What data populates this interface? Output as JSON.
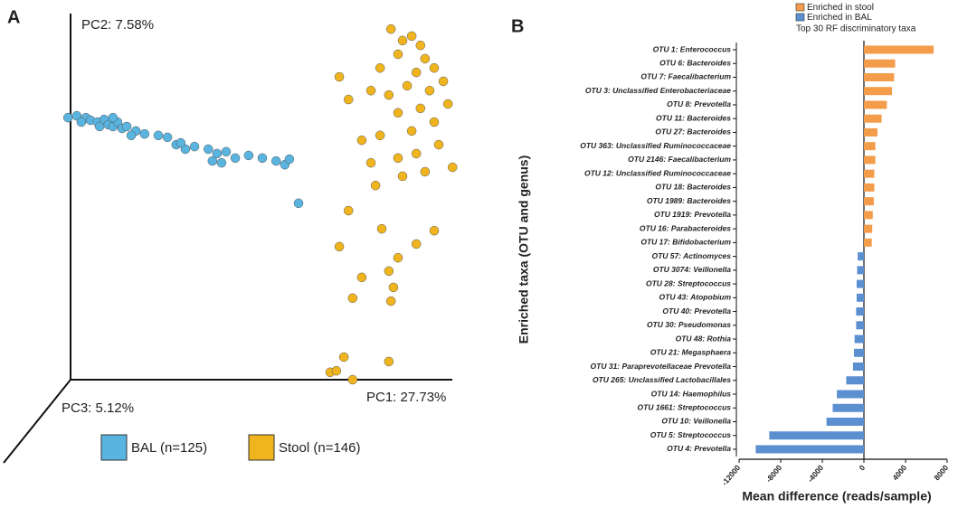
{
  "chart_data": [
    {
      "type": "scatter",
      "panel": "A",
      "axis_labels": {
        "pc1": "PC1: 27.73%",
        "pc2": "PC2: 7.58%",
        "pc3": "PC3: 5.12%"
      },
      "series": [
        {
          "name": "BAL (n=125)",
          "color": "#5ab4e0",
          "x": [
            3.3,
            5.4,
            7.6,
            8.7,
            10.4,
            12.0,
            13.0,
            14.1,
            15.2,
            16.3,
            17.4,
            19.6,
            21.7,
            25.0,
            27.2,
            29.3,
            31.5,
            33.7,
            37.0,
            39.1,
            41.3,
            43.5,
            46.7,
            50.0,
            53.3,
            55.4,
            56.5,
            58.7,
            6.5,
            10.9,
            14.1,
            18.5,
            30.4,
            38.0,
            40.2
          ],
          "y": [
            70.7,
            71.2,
            70.7,
            70.0,
            69.5,
            70.2,
            68.8,
            68.3,
            69.5,
            67.8,
            68.3,
            67.1,
            66.3,
            65.9,
            65.4,
            63.4,
            62.2,
            62.9,
            62.2,
            61.0,
            61.5,
            59.8,
            60.5,
            59.8,
            59.0,
            58.0,
            59.5,
            47.6,
            69.5,
            68.3,
            70.7,
            65.9,
            63.9,
            59.0,
            58.5
          ]
        },
        {
          "name": "Stool (n=146)",
          "color": "#f0b41e",
          "x": [
            80.9,
            83.7,
            85.9,
            88.0,
            82.6,
            89.1,
            91.3,
            78.3,
            87.0,
            93.5,
            84.8,
            90.2,
            80.4,
            76.1,
            94.6,
            88.0,
            82.6,
            91.3,
            85.9,
            78.3,
            73.9,
            92.4,
            87.0,
            82.6,
            95.7,
            76.1,
            89.1,
            83.7,
            68.5,
            70.7,
            77.2,
            91.3,
            87.0,
            82.6,
            80.4,
            70.7,
            78.7,
            68.5,
            73.9,
            81.5,
            71.7,
            80.9,
            69.6,
            66.3,
            71.7,
            80.4,
            67.8
          ],
          "y": [
            94.6,
            91.5,
            92.7,
            90.2,
            87.8,
            86.6,
            84.1,
            84.1,
            82.9,
            80.5,
            79.3,
            78.0,
            76.8,
            78.0,
            74.4,
            73.2,
            72.0,
            69.5,
            67.1,
            65.9,
            64.6,
            63.4,
            61.0,
            59.8,
            57.3,
            58.5,
            56.1,
            54.9,
            81.7,
            75.6,
            52.4,
            40.2,
            36.6,
            32.9,
            29.3,
            45.6,
            40.7,
            35.9,
            27.6,
            24.9,
            22.0,
            21.2,
            6.1,
            2.0,
            0,
            4.9,
            2.4
          ]
        }
      ]
    },
    {
      "type": "hbar",
      "panel": "B",
      "y_label": "Enriched taxa (OTU and genus)",
      "x_label": "Mean difference (reads/sample)",
      "legend": [
        {
          "label": "Enriched in stool",
          "color": "#f39c4a"
        },
        {
          "label": "Enriched in BAL",
          "color": "#5b8fd0"
        }
      ],
      "highlight_note": {
        "text": "Top 30  RF discriminatory taxa",
        "color": "#3aa04a"
      },
      "categories": [
        "OTU 1: Enterococcus",
        "OTU 6: Bacteroides",
        "OTU 7: Faecalibacterium",
        "OTU 3: Unclassified Enterobacteriaceae",
        "OTU 8: Prevotella",
        "OTU 11: Bacteroides",
        "OTU 27: Bacteroides",
        "OTU 363: Unclassified Ruminococcaceae",
        "OTU 2146: Faecalibacterium",
        "OTU 12: Unclassified Ruminococcaceae",
        "OTU 18: Bacteroides",
        "OTU 1989: Bacteroides",
        "OTU 1919: Prevotella",
        "OTU 16: Parabacteroides",
        "OTU 17: Bifidobacterium",
        "OTU 57: Actinomyces",
        "OTU 3074: Veillonella",
        "OTU 28: Streptococcus",
        "OTU 43: Atopobium",
        "OTU 40: Prevotella",
        "OTU 30: Pseudomonas",
        "OTU 48: Rothia",
        "OTU 21: Megasphaera",
        "OTU 31: Paraprevotellaceae Prevotella",
        "OTU 265: Unclassified Lactobacillales",
        "OTU 14: Haemophilus",
        "OTU 1661: Streptococcus",
        "OTU 10: Veillonella",
        "OTU 5: Streptococcus",
        "OTU 4: Prevotella"
      ],
      "highlighted": [
        true,
        false,
        true,
        false,
        false,
        true,
        true,
        true,
        false,
        false,
        false,
        false,
        false,
        false,
        false,
        false,
        false,
        false,
        false,
        true,
        true,
        false,
        false,
        false,
        false,
        false,
        false,
        false,
        true,
        true
      ],
      "values": [
        6700,
        3000,
        2900,
        2700,
        2200,
        1700,
        1300,
        1100,
        1100,
        1000,
        1000,
        950,
        850,
        800,
        750,
        -600,
        -650,
        -700,
        -700,
        -750,
        -750,
        -900,
        -950,
        -1050,
        -1700,
        -2600,
        -3000,
        -3600,
        -9100,
        -10400
      ],
      "xlim": [
        -12000,
        8000
      ],
      "xticks": [
        -12000,
        -8000,
        -4000,
        0,
        4000,
        8000
      ]
    }
  ]
}
